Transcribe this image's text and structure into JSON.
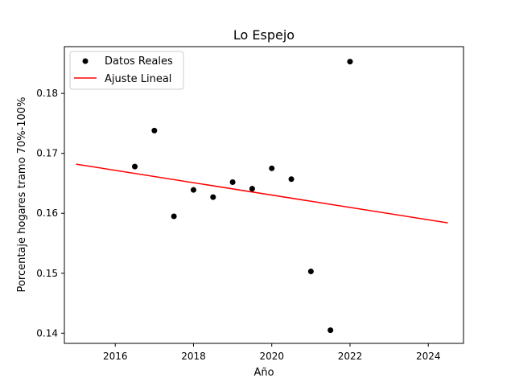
{
  "chart_data": {
    "type": "scatter",
    "title": "Lo Espejo",
    "xlabel": "Año",
    "ylabel": "Porcentaje hogares tramo 70%-100%",
    "xlim": [
      2014.7,
      2024.9
    ],
    "ylim": [
      0.1383,
      0.1878
    ],
    "xticks": [
      2016,
      2018,
      2020,
      2022,
      2024
    ],
    "yticks": [
      0.14,
      0.15,
      0.16,
      0.17,
      0.18
    ],
    "grid": false,
    "legend_position": "upper-left",
    "series": [
      {
        "name": "Datos Reales",
        "kind": "scatter",
        "color": "#000000",
        "x": [
          2016.5,
          2017.0,
          2017.5,
          2018.0,
          2018.5,
          2019.0,
          2019.5,
          2020.0,
          2020.5,
          2021.0,
          2021.5,
          2022.0
        ],
        "y": [
          0.1678,
          0.1738,
          0.1595,
          0.1639,
          0.1627,
          0.1652,
          0.1641,
          0.1675,
          0.1657,
          0.1503,
          0.1405,
          0.1853
        ]
      },
      {
        "name": "Ajuste Lineal",
        "kind": "line",
        "color": "#ff0000",
        "x": [
          2015.0,
          2024.5
        ],
        "y": [
          0.1682,
          0.1584
        ]
      }
    ]
  }
}
